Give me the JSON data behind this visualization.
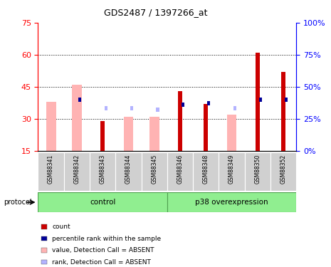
{
  "title": "GDS2487 / 1397266_at",
  "samples": [
    "GSM88341",
    "GSM88342",
    "GSM88343",
    "GSM88344",
    "GSM88345",
    "GSM88346",
    "GSM88348",
    "GSM88349",
    "GSM88350",
    "GSM88352"
  ],
  "count_values": [
    null,
    null,
    29,
    null,
    null,
    43,
    37,
    null,
    61,
    52
  ],
  "rank_values": [
    null,
    40,
    null,
    null,
    null,
    36,
    37,
    null,
    40,
    40
  ],
  "value_absent": [
    38,
    46,
    null,
    31,
    31,
    null,
    null,
    32,
    null,
    null
  ],
  "rank_absent": [
    null,
    null,
    33,
    33,
    32,
    null,
    null,
    33,
    null,
    null
  ],
  "ylim_left": [
    15,
    75
  ],
  "ylim_right": [
    0,
    100
  ],
  "yticks_left": [
    15,
    30,
    45,
    60,
    75
  ],
  "yticks_right": [
    0,
    25,
    50,
    75,
    100
  ],
  "right_tick_labels": [
    "0%",
    "25%",
    "50%",
    "75%",
    "100%"
  ],
  "color_count": "#cc0000",
  "color_rank": "#000099",
  "color_value_absent": "#ffb3b3",
  "color_rank_absent": "#b3b3ff",
  "protocol_label": "protocol",
  "control_label": "control",
  "overexp_label": "p38 overexpression",
  "legend_items": [
    {
      "label": "count",
      "color": "#cc0000"
    },
    {
      "label": "percentile rank within the sample",
      "color": "#000099"
    },
    {
      "label": "value, Detection Call = ABSENT",
      "color": "#ffb3b3"
    },
    {
      "label": "rank, Detection Call = ABSENT",
      "color": "#b3b3ff"
    }
  ]
}
